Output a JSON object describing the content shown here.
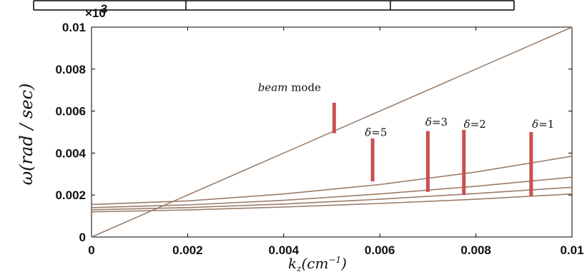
{
  "chart_data": {
    "type": "line",
    "xlabel": "k_z(cm^-1)",
    "ylabel": "ω(rad/sec)",
    "y_multiplier": "×10^3",
    "xlim": [
      0,
      0.01
    ],
    "ylim": [
      0,
      0.01
    ],
    "x_ticks": [
      "0",
      "0.002",
      "0.004",
      "0.006",
      "0.008",
      "0.01"
    ],
    "y_ticks": [
      "0",
      "0.002",
      "0.004",
      "0.006",
      "0.008",
      "0.01"
    ],
    "grid": false,
    "series": [
      {
        "x": [
          0,
          0.01
        ],
        "y": [
          0,
          0.01
        ]
      },
      {
        "x": [
          0,
          0.002,
          0.004,
          0.006,
          0.008,
          0.01
        ],
        "y": [
          0.00155,
          0.00172,
          0.00205,
          0.0025,
          0.0031,
          0.00385
        ]
      },
      {
        "x": [
          0,
          0.002,
          0.004,
          0.006,
          0.008,
          0.01
        ],
        "y": [
          0.0014,
          0.00153,
          0.00175,
          0.00205,
          0.00242,
          0.00285
        ]
      },
      {
        "x": [
          0,
          0.002,
          0.004,
          0.006,
          0.008,
          0.01
        ],
        "y": [
          0.0013,
          0.0014,
          0.00157,
          0.0018,
          0.00207,
          0.00237
        ]
      },
      {
        "x": [
          0,
          0.002,
          0.004,
          0.006,
          0.008,
          0.01
        ],
        "y": [
          0.0012,
          0.00129,
          0.00143,
          0.0016,
          0.0018,
          0.00205
        ]
      }
    ],
    "annotations": [
      {
        "text": "beam mode",
        "x": 0.00412,
        "y": 0.00695,
        "marker_x": 0.00505,
        "marker_y": [
          0.00495,
          0.0064
        ]
      },
      {
        "text": "δ=5",
        "x": 0.00592,
        "y": 0.00482,
        "marker_x": 0.00585,
        "marker_y": [
          0.00265,
          0.0047
        ]
      },
      {
        "text": "δ=3",
        "x": 0.00718,
        "y": 0.0053,
        "marker_x": 0.007,
        "marker_y": [
          0.00215,
          0.00505
        ]
      },
      {
        "text": "δ=2",
        "x": 0.00798,
        "y": 0.0052,
        "marker_x": 0.00775,
        "marker_y": [
          0.002,
          0.0051
        ]
      },
      {
        "text": "δ=1",
        "x": 0.0094,
        "y": 0.0052,
        "marker_x": 0.00915,
        "marker_y": [
          0.00195,
          0.005
        ]
      }
    ],
    "colors": {
      "line": "#a07a6a",
      "marker": "#c9504f",
      "axis": "#000000"
    }
  }
}
